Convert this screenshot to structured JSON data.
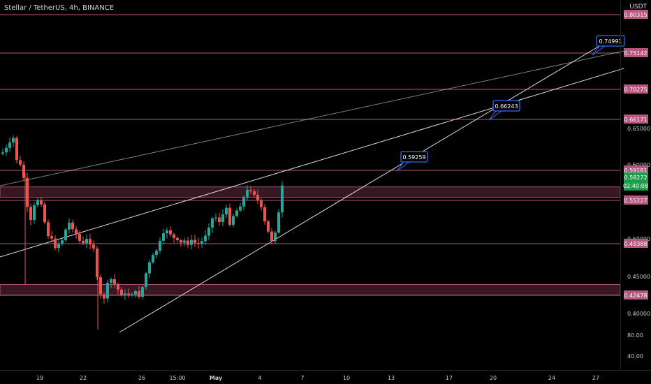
{
  "header": {
    "title": "Stellar / TetherUS, 4h, BINANCE",
    "currency": "USDT"
  },
  "colors": {
    "background": "#000000",
    "up_candle": "#26a69a",
    "down_candle": "#ef5350",
    "level_line": "#b5577e",
    "zone_fill": "#3a1a22",
    "trendline": "#e6e6e6",
    "callout": "#2f6bff",
    "current_price_bg": "#1e9c4a",
    "level_label_bg": "#b5577e"
  },
  "chart_data": {
    "type": "candlestick",
    "title": "Stellar / TetherUS, 4h, BINANCE",
    "y_unit": "USDT",
    "x_ticks": [
      "19",
      "22",
      "26",
      "15:00",
      "May",
      "4",
      "7",
      "10",
      "13",
      "17",
      "20",
      "24",
      "27"
    ],
    "y_ticks": [
      "0.65000",
      "0.60000",
      "0.50000",
      "0.45000",
      "0.40000",
      "80.00",
      "40.00"
    ],
    "horizontal_levels": [
      "0.80315",
      "0.75142",
      "0.70275",
      "0.66171",
      "0.59181",
      "0.55227",
      "0.49388",
      "0.42478"
    ],
    "zones": [
      {
        "from": 0.5563,
        "to": 0.57
      },
      {
        "from": 0.4252,
        "to": 0.4392
      }
    ],
    "current_price": {
      "value": "0.58272",
      "countdown": "02:40:08"
    },
    "callouts": [
      "0.59259",
      "0.66243",
      "0.74991"
    ],
    "grid": false
  }
}
